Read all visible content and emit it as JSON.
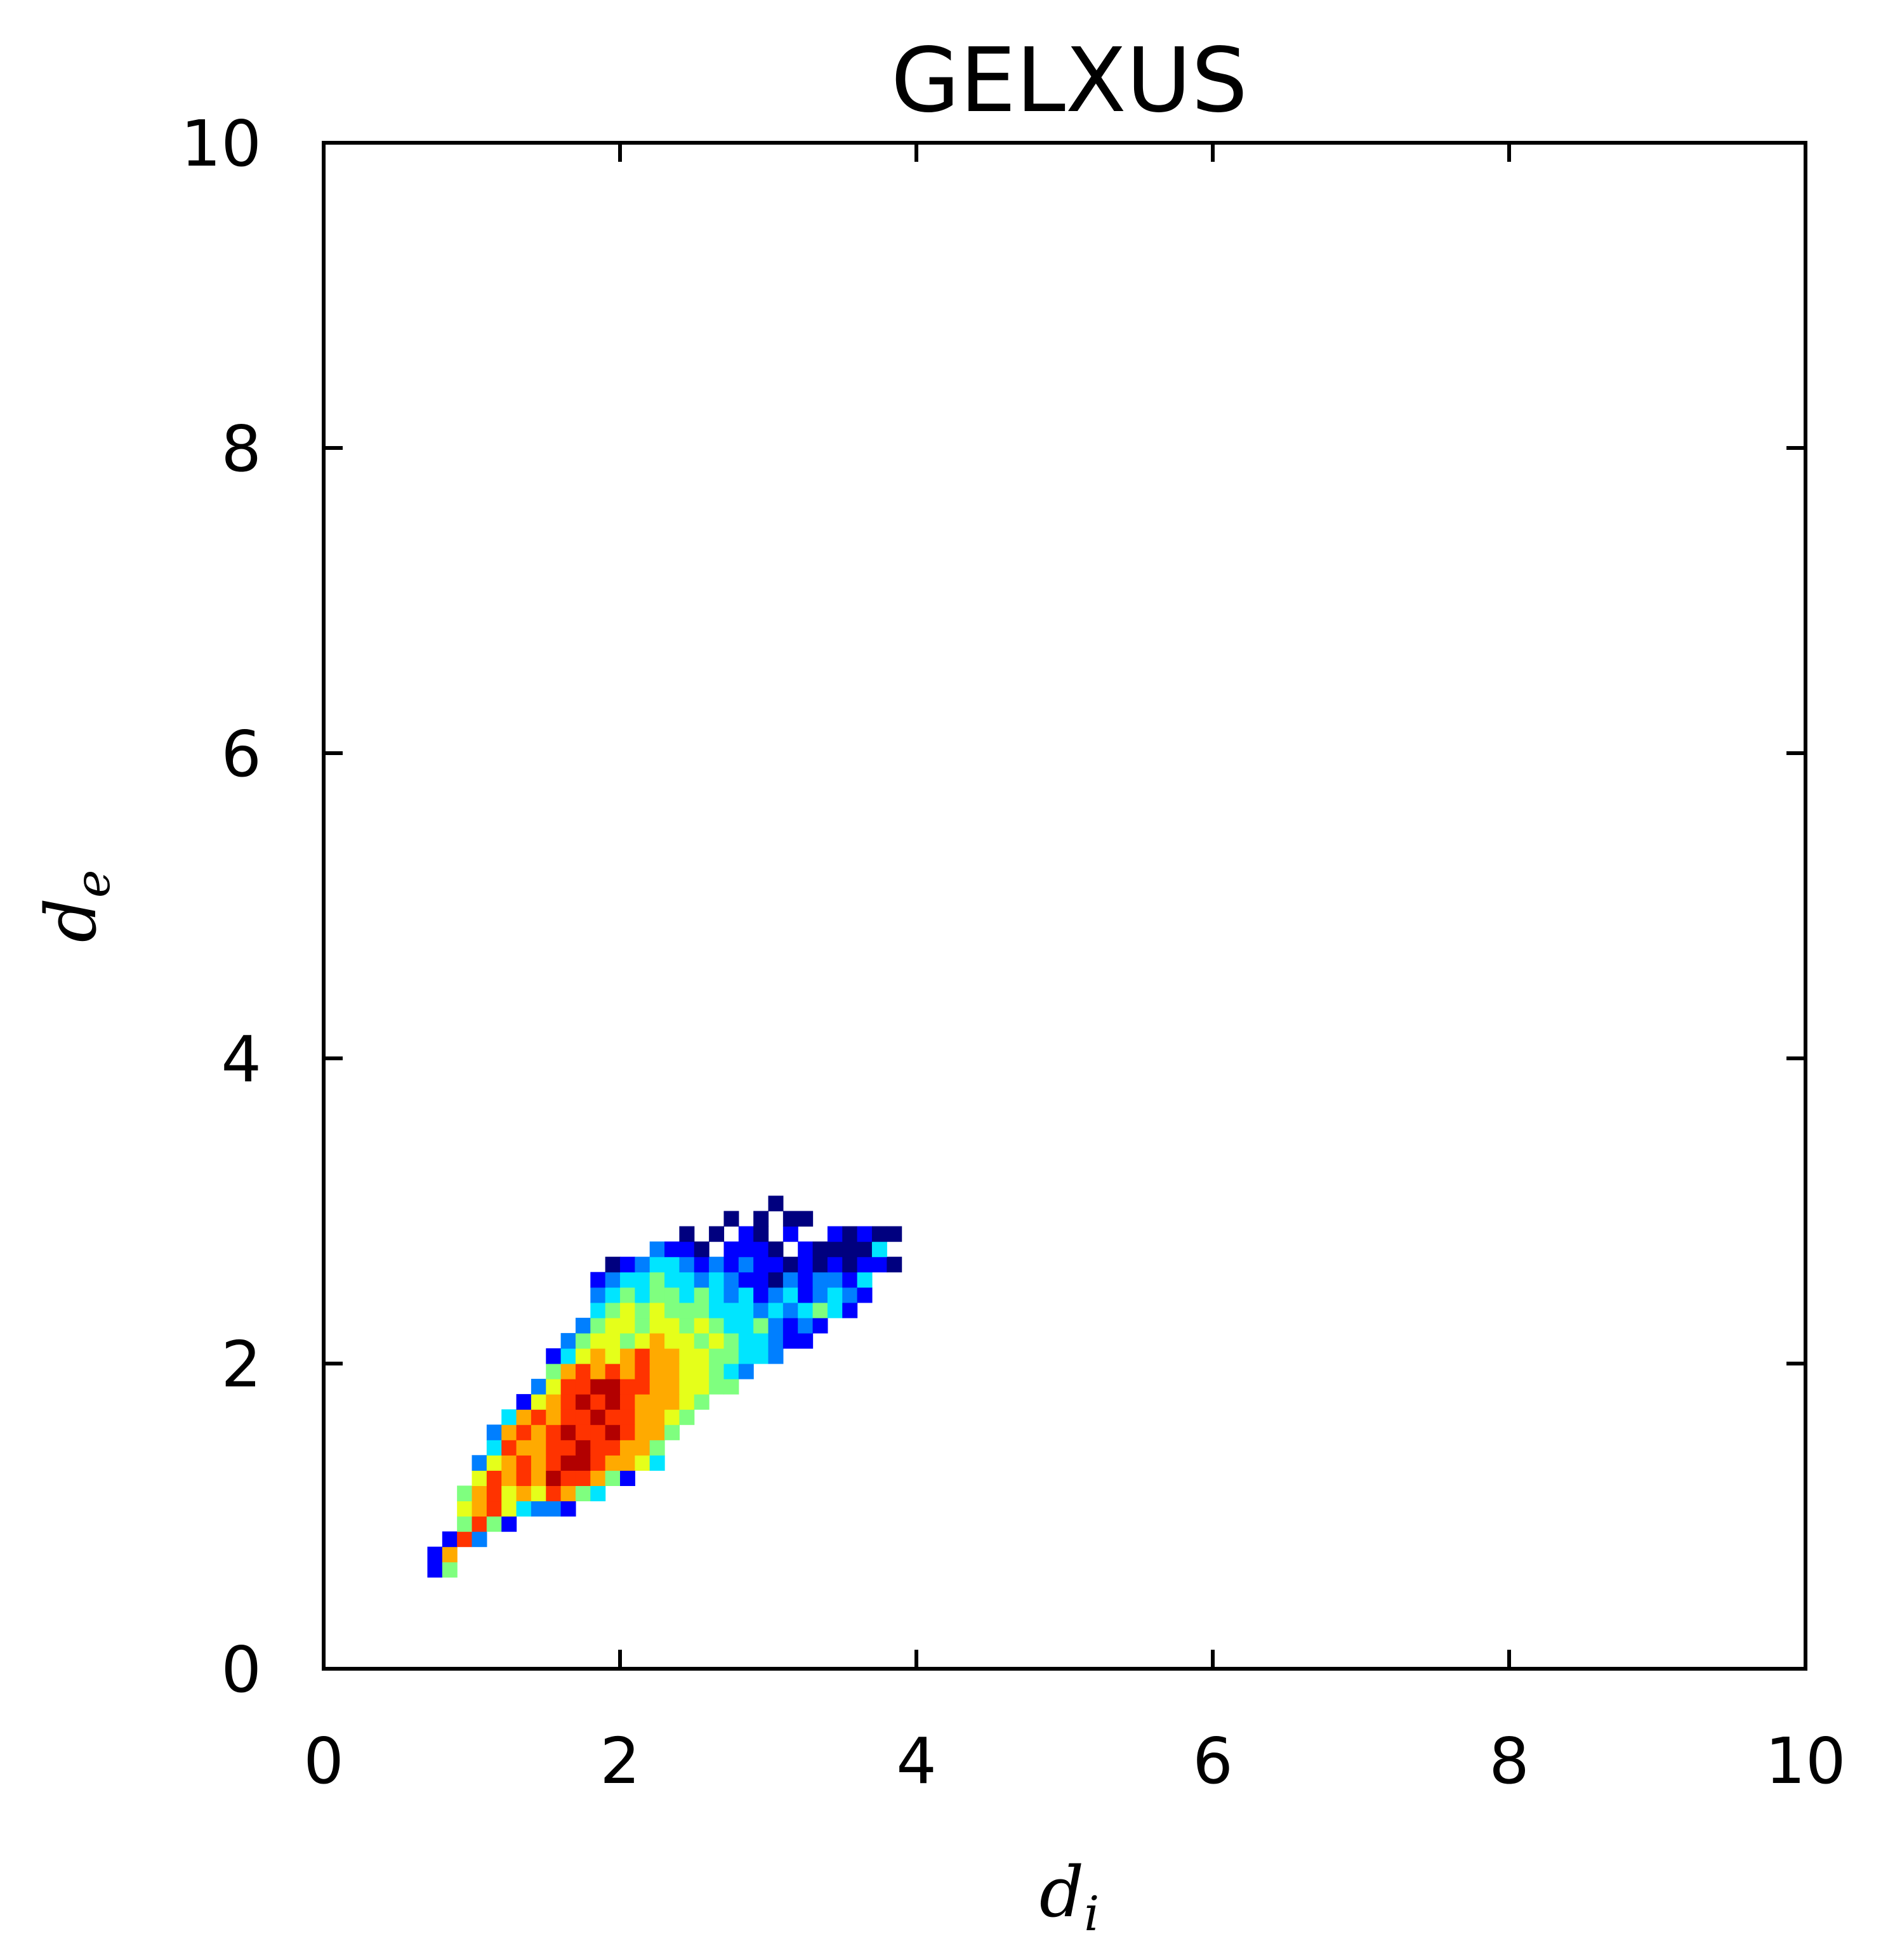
{
  "chart_data": {
    "type": "heatmap",
    "title": "GELXUS",
    "xlabel": {
      "base": "d",
      "sub": "i"
    },
    "ylabel": {
      "base": "d",
      "sub": "e"
    },
    "xlim": [
      0,
      10
    ],
    "ylim": [
      0,
      10
    ],
    "xticks": [
      "0",
      "2",
      "4",
      "6",
      "8",
      "10"
    ],
    "yticks": [
      "0",
      "2",
      "4",
      "6",
      "8",
      "10"
    ],
    "grid": false,
    "legend": "none",
    "colormap": "jet",
    "bin_width": 0.1,
    "bin_height": 0.1,
    "colors": [
      "#00007f",
      "#0000ff",
      "#007fff",
      "#00e5ff",
      "#7fff7f",
      "#e5ff1a",
      "#ffaa00",
      "#ff3300",
      "#b20000"
    ],
    "cells": [
      [
        0.7,
        0.6,
        1
      ],
      [
        0.8,
        0.6,
        4
      ],
      [
        0.7,
        0.7,
        1
      ],
      [
        0.8,
        0.7,
        6
      ],
      [
        0.8,
        0.8,
        1
      ],
      [
        0.9,
        0.8,
        7
      ],
      [
        1.0,
        0.8,
        2
      ],
      [
        0.9,
        0.9,
        4
      ],
      [
        1.0,
        0.9,
        7
      ],
      [
        1.1,
        0.9,
        4
      ],
      [
        1.2,
        0.9,
        1
      ],
      [
        0.9,
        1.0,
        5
      ],
      [
        1.0,
        1.0,
        6
      ],
      [
        1.1,
        1.0,
        7
      ],
      [
        1.2,
        1.0,
        5
      ],
      [
        1.3,
        1.0,
        3
      ],
      [
        1.4,
        1.0,
        2
      ],
      [
        1.5,
        1.0,
        2
      ],
      [
        1.6,
        1.0,
        1
      ],
      [
        0.9,
        1.1,
        4
      ],
      [
        1.0,
        1.1,
        6
      ],
      [
        1.1,
        1.1,
        7
      ],
      [
        1.2,
        1.1,
        5
      ],
      [
        1.3,
        1.1,
        6
      ],
      [
        1.4,
        1.1,
        5
      ],
      [
        1.5,
        1.1,
        7
      ],
      [
        1.6,
        1.1,
        6
      ],
      [
        1.7,
        1.1,
        4
      ],
      [
        1.8,
        1.1,
        3
      ],
      [
        1.0,
        1.2,
        5
      ],
      [
        1.1,
        1.2,
        7
      ],
      [
        1.2,
        1.2,
        6
      ],
      [
        1.3,
        1.2,
        7
      ],
      [
        1.4,
        1.2,
        6
      ],
      [
        1.5,
        1.2,
        8
      ],
      [
        1.6,
        1.2,
        7
      ],
      [
        1.7,
        1.2,
        7
      ],
      [
        1.8,
        1.2,
        6
      ],
      [
        1.9,
        1.2,
        4
      ],
      [
        2.0,
        1.2,
        1
      ],
      [
        1.0,
        1.3,
        2
      ],
      [
        1.1,
        1.3,
        5
      ],
      [
        1.2,
        1.3,
        6
      ],
      [
        1.3,
        1.3,
        7
      ],
      [
        1.4,
        1.3,
        6
      ],
      [
        1.5,
        1.3,
        7
      ],
      [
        1.6,
        1.3,
        8
      ],
      [
        1.7,
        1.3,
        8
      ],
      [
        1.8,
        1.3,
        7
      ],
      [
        1.9,
        1.3,
        6
      ],
      [
        2.0,
        1.3,
        6
      ],
      [
        2.1,
        1.3,
        5
      ],
      [
        2.2,
        1.3,
        3
      ],
      [
        1.1,
        1.4,
        3
      ],
      [
        1.2,
        1.4,
        7
      ],
      [
        1.3,
        1.4,
        6
      ],
      [
        1.4,
        1.4,
        6
      ],
      [
        1.5,
        1.4,
        7
      ],
      [
        1.6,
        1.4,
        7
      ],
      [
        1.7,
        1.4,
        8
      ],
      [
        1.8,
        1.4,
        7
      ],
      [
        1.9,
        1.4,
        7
      ],
      [
        2.0,
        1.4,
        6
      ],
      [
        2.1,
        1.4,
        6
      ],
      [
        2.2,
        1.4,
        4
      ],
      [
        1.1,
        1.5,
        2
      ],
      [
        1.2,
        1.5,
        6
      ],
      [
        1.3,
        1.5,
        7
      ],
      [
        1.4,
        1.5,
        6
      ],
      [
        1.5,
        1.5,
        7
      ],
      [
        1.6,
        1.5,
        8
      ],
      [
        1.7,
        1.5,
        7
      ],
      [
        1.8,
        1.5,
        7
      ],
      [
        1.9,
        1.5,
        8
      ],
      [
        2.0,
        1.5,
        7
      ],
      [
        2.1,
        1.5,
        6
      ],
      [
        2.2,
        1.5,
        6
      ],
      [
        2.3,
        1.5,
        4
      ],
      [
        1.2,
        1.6,
        3
      ],
      [
        1.3,
        1.6,
        6
      ],
      [
        1.4,
        1.6,
        7
      ],
      [
        1.5,
        1.6,
        6
      ],
      [
        1.6,
        1.6,
        7
      ],
      [
        1.7,
        1.6,
        7
      ],
      [
        1.8,
        1.6,
        8
      ],
      [
        1.9,
        1.6,
        7
      ],
      [
        2.0,
        1.6,
        7
      ],
      [
        2.1,
        1.6,
        6
      ],
      [
        2.2,
        1.6,
        6
      ],
      [
        2.3,
        1.6,
        5
      ],
      [
        2.4,
        1.6,
        4
      ],
      [
        1.3,
        1.7,
        1
      ],
      [
        1.4,
        1.7,
        5
      ],
      [
        1.5,
        1.7,
        6
      ],
      [
        1.6,
        1.7,
        7
      ],
      [
        1.7,
        1.7,
        8
      ],
      [
        1.8,
        1.7,
        7
      ],
      [
        1.9,
        1.7,
        8
      ],
      [
        2.0,
        1.7,
        7
      ],
      [
        2.1,
        1.7,
        6
      ],
      [
        2.2,
        1.7,
        6
      ],
      [
        2.3,
        1.7,
        6
      ],
      [
        2.4,
        1.7,
        5
      ],
      [
        2.5,
        1.7,
        4
      ],
      [
        1.4,
        1.8,
        2
      ],
      [
        1.5,
        1.8,
        5
      ],
      [
        1.6,
        1.8,
        7
      ],
      [
        1.7,
        1.8,
        7
      ],
      [
        1.8,
        1.8,
        8
      ],
      [
        1.9,
        1.8,
        8
      ],
      [
        2.0,
        1.8,
        7
      ],
      [
        2.1,
        1.8,
        7
      ],
      [
        2.2,
        1.8,
        6
      ],
      [
        2.3,
        1.8,
        6
      ],
      [
        2.4,
        1.8,
        5
      ],
      [
        2.5,
        1.8,
        5
      ],
      [
        2.6,
        1.8,
        4
      ],
      [
        2.7,
        1.8,
        4
      ],
      [
        1.5,
        1.9,
        4
      ],
      [
        1.6,
        1.9,
        6
      ],
      [
        1.7,
        1.9,
        7
      ],
      [
        1.8,
        1.9,
        6
      ],
      [
        1.9,
        1.9,
        7
      ],
      [
        2.0,
        1.9,
        6
      ],
      [
        2.1,
        1.9,
        7
      ],
      [
        2.2,
        1.9,
        6
      ],
      [
        2.3,
        1.9,
        6
      ],
      [
        2.4,
        1.9,
        5
      ],
      [
        2.5,
        1.9,
        5
      ],
      [
        2.6,
        1.9,
        4
      ],
      [
        2.7,
        1.9,
        3
      ],
      [
        2.8,
        1.9,
        2
      ],
      [
        1.5,
        2.0,
        1
      ],
      [
        1.6,
        2.0,
        3
      ],
      [
        1.7,
        2.0,
        5
      ],
      [
        1.8,
        2.0,
        6
      ],
      [
        1.9,
        2.0,
        5
      ],
      [
        2.0,
        2.0,
        6
      ],
      [
        2.1,
        2.0,
        7
      ],
      [
        2.2,
        2.0,
        6
      ],
      [
        2.3,
        2.0,
        6
      ],
      [
        2.4,
        2.0,
        5
      ],
      [
        2.5,
        2.0,
        5
      ],
      [
        2.6,
        2.0,
        4
      ],
      [
        2.7,
        2.0,
        4
      ],
      [
        2.8,
        2.0,
        3
      ],
      [
        2.9,
        2.0,
        3
      ],
      [
        3.0,
        2.0,
        2
      ],
      [
        1.6,
        2.1,
        2
      ],
      [
        1.7,
        2.1,
        4
      ],
      [
        1.8,
        2.1,
        5
      ],
      [
        1.9,
        2.1,
        5
      ],
      [
        2.0,
        2.1,
        4
      ],
      [
        2.1,
        2.1,
        5
      ],
      [
        2.2,
        2.1,
        6
      ],
      [
        2.3,
        2.1,
        5
      ],
      [
        2.4,
        2.1,
        5
      ],
      [
        2.5,
        2.1,
        4
      ],
      [
        2.6,
        2.1,
        5
      ],
      [
        2.7,
        2.1,
        4
      ],
      [
        2.8,
        2.1,
        3
      ],
      [
        2.9,
        2.1,
        3
      ],
      [
        3.0,
        2.1,
        2
      ],
      [
        3.1,
        2.1,
        1
      ],
      [
        3.2,
        2.1,
        1
      ],
      [
        1.7,
        2.2,
        2
      ],
      [
        1.8,
        2.2,
        4
      ],
      [
        1.9,
        2.2,
        5
      ],
      [
        2.0,
        2.2,
        5
      ],
      [
        2.1,
        2.2,
        4
      ],
      [
        2.2,
        2.2,
        5
      ],
      [
        2.3,
        2.2,
        5
      ],
      [
        2.4,
        2.2,
        4
      ],
      [
        2.5,
        2.2,
        5
      ],
      [
        2.6,
        2.2,
        4
      ],
      [
        2.7,
        2.2,
        3
      ],
      [
        2.8,
        2.2,
        3
      ],
      [
        2.9,
        2.2,
        4
      ],
      [
        3.0,
        2.2,
        2
      ],
      [
        3.1,
        2.2,
        1
      ],
      [
        3.2,
        2.2,
        2
      ],
      [
        3.3,
        2.2,
        1
      ],
      [
        1.8,
        2.3,
        3
      ],
      [
        1.9,
        2.3,
        4
      ],
      [
        2.0,
        2.3,
        5
      ],
      [
        2.1,
        2.3,
        4
      ],
      [
        2.2,
        2.3,
        5
      ],
      [
        2.3,
        2.3,
        4
      ],
      [
        2.4,
        2.3,
        4
      ],
      [
        2.5,
        2.3,
        4
      ],
      [
        2.6,
        2.3,
        3
      ],
      [
        2.7,
        2.3,
        3
      ],
      [
        2.8,
        2.3,
        3
      ],
      [
        2.9,
        2.3,
        2
      ],
      [
        3.0,
        2.3,
        3
      ],
      [
        3.1,
        2.3,
        2
      ],
      [
        3.2,
        2.3,
        3
      ],
      [
        3.3,
        2.3,
        4
      ],
      [
        3.4,
        2.3,
        3
      ],
      [
        3.5,
        2.3,
        1
      ],
      [
        1.8,
        2.4,
        2
      ],
      [
        1.9,
        2.4,
        3
      ],
      [
        2.0,
        2.4,
        4
      ],
      [
        2.1,
        2.4,
        3
      ],
      [
        2.2,
        2.4,
        4
      ],
      [
        2.3,
        2.4,
        4
      ],
      [
        2.4,
        2.4,
        3
      ],
      [
        2.5,
        2.4,
        4
      ],
      [
        2.6,
        2.4,
        3
      ],
      [
        2.7,
        2.4,
        2
      ],
      [
        2.8,
        2.4,
        3
      ],
      [
        2.9,
        2.4,
        1
      ],
      [
        3.0,
        2.4,
        2
      ],
      [
        3.1,
        2.4,
        3
      ],
      [
        3.2,
        2.4,
        1
      ],
      [
        3.3,
        2.4,
        2
      ],
      [
        3.4,
        2.4,
        3
      ],
      [
        3.5,
        2.4,
        2
      ],
      [
        3.6,
        2.4,
        1
      ],
      [
        1.8,
        2.5,
        1
      ],
      [
        1.9,
        2.5,
        2
      ],
      [
        2.0,
        2.5,
        3
      ],
      [
        2.1,
        2.5,
        3
      ],
      [
        2.2,
        2.5,
        4
      ],
      [
        2.3,
        2.5,
        3
      ],
      [
        2.4,
        2.5,
        3
      ],
      [
        2.5,
        2.5,
        2
      ],
      [
        2.6,
        2.5,
        3
      ],
      [
        2.7,
        2.5,
        2
      ],
      [
        2.8,
        2.5,
        1
      ],
      [
        2.9,
        2.5,
        1
      ],
      [
        3.0,
        2.5,
        0
      ],
      [
        3.1,
        2.5,
        2
      ],
      [
        3.2,
        2.5,
        1
      ],
      [
        3.3,
        2.5,
        2
      ],
      [
        3.4,
        2.5,
        2
      ],
      [
        3.5,
        2.5,
        1
      ],
      [
        3.6,
        2.5,
        3
      ],
      [
        1.9,
        2.6,
        0
      ],
      [
        2.0,
        2.6,
        1
      ],
      [
        2.1,
        2.6,
        2
      ],
      [
        2.2,
        2.6,
        3
      ],
      [
        2.3,
        2.6,
        3
      ],
      [
        2.4,
        2.6,
        2
      ],
      [
        2.5,
        2.6,
        1
      ],
      [
        2.6,
        2.6,
        2
      ],
      [
        2.7,
        2.6,
        1
      ],
      [
        2.8,
        2.6,
        2
      ],
      [
        2.9,
        2.6,
        1
      ],
      [
        3.0,
        2.6,
        1
      ],
      [
        3.1,
        2.6,
        0
      ],
      [
        3.2,
        2.6,
        1
      ],
      [
        3.3,
        2.6,
        0
      ],
      [
        3.4,
        2.6,
        1
      ],
      [
        3.5,
        2.6,
        0
      ],
      [
        3.6,
        2.6,
        1
      ],
      [
        3.7,
        2.6,
        1
      ],
      [
        3.8,
        2.6,
        0
      ],
      [
        2.2,
        2.7,
        2
      ],
      [
        2.3,
        2.7,
        1
      ],
      [
        2.4,
        2.7,
        1
      ],
      [
        2.5,
        2.7,
        0
      ],
      [
        2.7,
        2.7,
        1
      ],
      [
        2.8,
        2.7,
        1
      ],
      [
        2.9,
        2.7,
        1
      ],
      [
        3.0,
        2.7,
        0
      ],
      [
        3.2,
        2.7,
        1
      ],
      [
        3.3,
        2.7,
        0
      ],
      [
        3.4,
        2.7,
        0
      ],
      [
        3.5,
        2.7,
        0
      ],
      [
        3.6,
        2.7,
        0
      ],
      [
        3.7,
        2.7,
        3
      ],
      [
        2.4,
        2.8,
        0
      ],
      [
        2.6,
        2.8,
        0
      ],
      [
        2.8,
        2.8,
        1
      ],
      [
        2.9,
        2.8,
        0
      ],
      [
        3.1,
        2.8,
        1
      ],
      [
        3.4,
        2.8,
        1
      ],
      [
        3.5,
        2.8,
        0
      ],
      [
        3.6,
        2.8,
        1
      ],
      [
        3.7,
        2.8,
        0
      ],
      [
        3.8,
        2.8,
        0
      ],
      [
        2.7,
        2.9,
        0
      ],
      [
        2.9,
        2.9,
        0
      ],
      [
        3.1,
        2.9,
        0
      ],
      [
        3.2,
        2.9,
        0
      ],
      [
        3.0,
        3.0,
        0
      ]
    ]
  }
}
